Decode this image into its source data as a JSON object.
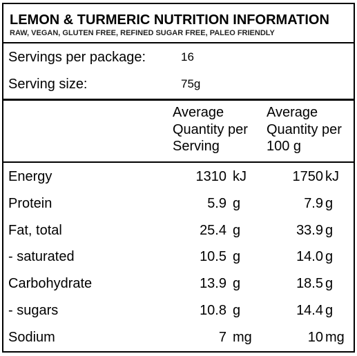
{
  "header": {
    "title": "LEMON & TURMERIC NUTRITION INFORMATION",
    "subtitle": "RAW, VEGAN, GLUTEN FREE, REFINED SUGAR FREE, PALEO FRIENDLY"
  },
  "servings": {
    "per_package_label": "Servings per package:",
    "per_package_value": "16",
    "size_label": "Serving size:",
    "size_value": "75g"
  },
  "columns": {
    "per_serving": [
      "Average",
      "Quantity per",
      "Serving"
    ],
    "per_100g": [
      "Average",
      "Quantity per",
      "100 g"
    ]
  },
  "rows": [
    {
      "name": "Energy",
      "serving": "1310",
      "serving_unit": "kJ",
      "per100": "1750",
      "per100_unit": "kJ"
    },
    {
      "name": "Protein",
      "serving": "5.9",
      "serving_unit": "g",
      "per100": "7.9",
      "per100_unit": "g"
    },
    {
      "name": "Fat, total",
      "serving": "25.4",
      "serving_unit": "g",
      "per100": "33.9",
      "per100_unit": "g"
    },
    {
      "name": "- saturated",
      "serving": "10.5",
      "serving_unit": "g",
      "per100": "14.0",
      "per100_unit": "g"
    },
    {
      "name": "Carbohydrate",
      "serving": "13.9",
      "serving_unit": "g",
      "per100": "18.5",
      "per100_unit": "g"
    },
    {
      "name": "- sugars",
      "serving": "10.8",
      "serving_unit": "g",
      "per100": "14.4",
      "per100_unit": "g"
    },
    {
      "name": "Sodium",
      "serving": "7",
      "serving_unit": "mg",
      "per100": "10",
      "per100_unit": "mg"
    }
  ]
}
